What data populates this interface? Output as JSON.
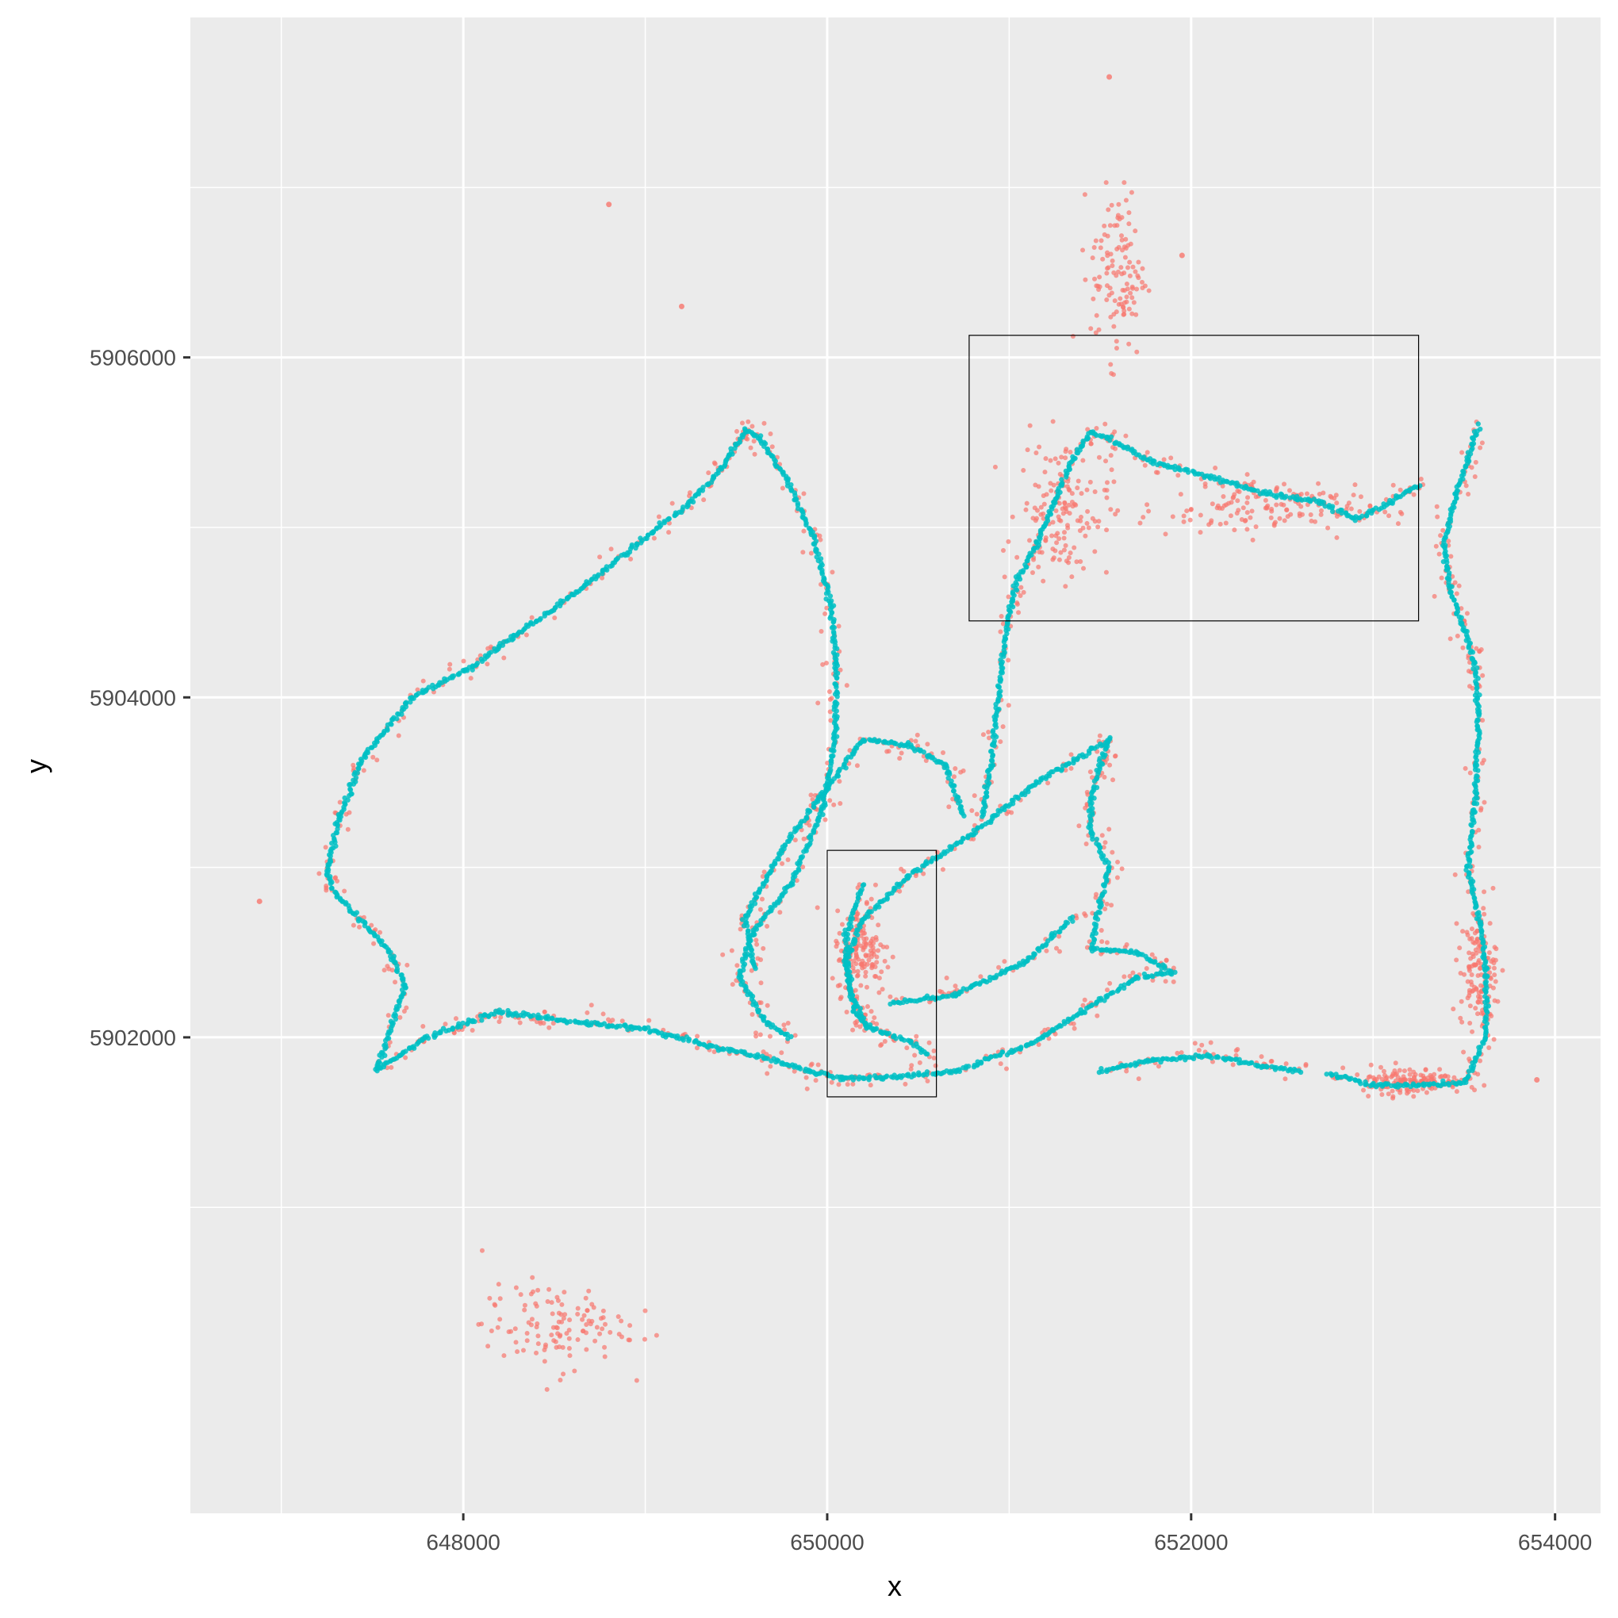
{
  "chart_data": {
    "type": "scatter",
    "xlabel": "x",
    "ylabel": "y",
    "xlim": [
      646500,
      654250
    ],
    "ylim": [
      5899200,
      5908000
    ],
    "x_ticks": [
      648000,
      650000,
      652000,
      654000
    ],
    "x_tick_labels": [
      "648000",
      "650000",
      "652000",
      "654000"
    ],
    "y_ticks": [
      5902000,
      5904000,
      5906000
    ],
    "y_tick_labels": [
      "5902000",
      "5904000",
      "5906000"
    ],
    "grid": true,
    "legend": "none",
    "colors": {
      "panel": "#ebebeb",
      "grid": "#ffffff",
      "series_red": "#f8766d",
      "series_teal": "#00bfc4",
      "box": "#000000"
    },
    "series": [
      {
        "color": "#00bfc4",
        "description_of_marks": "dense GPS track points",
        "paths": [
          [
            [
              647520,
              5901810
            ],
            [
              647680,
              5902300
            ],
            [
              647600,
              5902500
            ],
            [
              647300,
              5902840
            ],
            [
              647250,
              5902960
            ],
            [
              647320,
              5903300
            ],
            [
              647450,
              5903650
            ],
            [
              647720,
              5904000
            ],
            [
              648050,
              5904180
            ],
            [
              648200,
              5904300
            ],
            [
              648600,
              5904600
            ],
            [
              648950,
              5904900
            ],
            [
              649250,
              5905150
            ],
            [
              649420,
              5905350
            ],
            [
              649550,
              5905570
            ],
            [
              649620,
              5905540
            ],
            [
              649780,
              5905280
            ],
            [
              649920,
              5904950
            ],
            [
              650020,
              5904550
            ],
            [
              650050,
              5904200
            ],
            [
              650050,
              5903800
            ],
            [
              649980,
              5903350
            ],
            [
              649800,
              5902900
            ],
            [
              649580,
              5902600
            ],
            [
              649520,
              5902350
            ],
            [
              649650,
              5902100
            ],
            [
              649800,
              5902000
            ]
          ],
          [
            [
              647520,
              5901810
            ],
            [
              647800,
              5902000
            ],
            [
              648050,
              5902100
            ],
            [
              648200,
              5902150
            ],
            [
              648400,
              5902120
            ],
            [
              648700,
              5902080
            ],
            [
              649000,
              5902050
            ],
            [
              649350,
              5901950
            ],
            [
              649650,
              5901880
            ],
            [
              649900,
              5901800
            ],
            [
              650100,
              5901760
            ],
            [
              650300,
              5901760
            ],
            [
              650700,
              5901800
            ],
            [
              651100,
              5901950
            ],
            [
              651400,
              5902150
            ],
            [
              651700,
              5902350
            ],
            [
              651900,
              5902380
            ],
            [
              651700,
              5902500
            ],
            [
              651450,
              5902520
            ],
            [
              651500,
              5902800
            ],
            [
              651550,
              5903000
            ],
            [
              651450,
              5903200
            ],
            [
              651450,
              5903400
            ],
            [
              651500,
              5903600
            ],
            [
              651550,
              5903750
            ],
            [
              651150,
              5903500
            ],
            [
              650800,
              5903200
            ],
            [
              650450,
              5902950
            ],
            [
              650200,
              5902700
            ],
            [
              650100,
              5902450
            ],
            [
              650150,
              5902150
            ],
            [
              650250,
              5902050
            ],
            [
              650450,
              5901980
            ],
            [
              650550,
              5901900
            ]
          ],
          [
            [
              651500,
              5901800
            ],
            [
              651800,
              5901870
            ],
            [
              652100,
              5901890
            ],
            [
              652400,
              5901830
            ],
            [
              652600,
              5901800
            ]
          ],
          [
            [
              652750,
              5901790
            ],
            [
              653000,
              5901720
            ],
            [
              653250,
              5901720
            ],
            [
              653500,
              5901730
            ],
            [
              653620,
              5902000
            ],
            [
              653620,
              5902400
            ],
            [
              653580,
              5902700
            ],
            [
              653520,
              5903000
            ],
            [
              653560,
              5903400
            ],
            [
              653580,
              5903900
            ],
            [
              653560,
              5904200
            ],
            [
              653500,
              5904400
            ],
            [
              653420,
              5904650
            ],
            [
              653390,
              5904900
            ],
            [
              653460,
              5905200
            ],
            [
              653520,
              5905400
            ],
            [
              653580,
              5905600
            ]
          ],
          [
            [
              650850,
              5903300
            ],
            [
              650900,
              5903600
            ],
            [
              650950,
              5904100
            ],
            [
              651000,
              5904500
            ],
            [
              651050,
              5904700
            ],
            [
              651150,
              5904900
            ],
            [
              651250,
              5905150
            ],
            [
              651350,
              5905400
            ],
            [
              651450,
              5905560
            ],
            [
              651550,
              5905520
            ],
            [
              651800,
              5905380
            ],
            [
              652100,
              5905300
            ],
            [
              652400,
              5905200
            ],
            [
              652700,
              5905150
            ],
            [
              652900,
              5905050
            ],
            [
              653100,
              5905150
            ],
            [
              653250,
              5905250
            ]
          ],
          [
            [
              649600,
              5902400
            ],
            [
              649550,
              5902700
            ],
            [
              649750,
              5903100
            ],
            [
              649950,
              5903400
            ],
            [
              650200,
              5903750
            ],
            [
              650450,
              5903720
            ],
            [
              650650,
              5903600
            ],
            [
              650750,
              5903300
            ]
          ],
          [
            [
              650200,
              5902900
            ],
            [
              650100,
              5902600
            ],
            [
              650130,
              5902250
            ],
            [
              650230,
              5902050
            ]
          ],
          [
            [
              650350,
              5902200
            ],
            [
              650700,
              5902250
            ],
            [
              651100,
              5902450
            ],
            [
              651350,
              5902700
            ]
          ]
        ]
      },
      {
        "color": "#f8766d",
        "description_of_marks": "scattered noisy GPS points around the track",
        "clusters": [
          {
            "center": [
              651300,
              5905100
            ],
            "spread": [
              250,
              400
            ]
          },
          {
            "center": [
              652300,
              5905100
            ],
            "spread": [
              600,
              150
            ]
          },
          {
            "center": [
              651600,
              5906500
            ],
            "spread": [
              150,
              500
            ]
          },
          {
            "center": [
              650200,
              5902500
            ],
            "spread": [
              150,
              250
            ]
          },
          {
            "center": [
              653200,
              5901750
            ],
            "spread": [
              300,
              80
            ]
          },
          {
            "center": [
              653580,
              5902400
            ],
            "spread": [
              100,
              350
            ]
          },
          {
            "center": [
              648500,
              5900300
            ],
            "spread": [
              400,
              250
            ]
          }
        ],
        "outliers": [
          [
            648800,
            5906900
          ],
          [
            649200,
            5906300
          ],
          [
            651550,
            5907650
          ],
          [
            651950,
            5906600
          ],
          [
            646880,
            5902800
          ],
          [
            653900,
            5901750
          ]
        ]
      }
    ],
    "rectangles": [
      {
        "x": [
          650780,
          653250
        ],
        "y": [
          5904450,
          5906130
        ]
      },
      {
        "x": [
          650000,
          650600
        ],
        "y": [
          5901650,
          5903100
        ]
      }
    ]
  }
}
